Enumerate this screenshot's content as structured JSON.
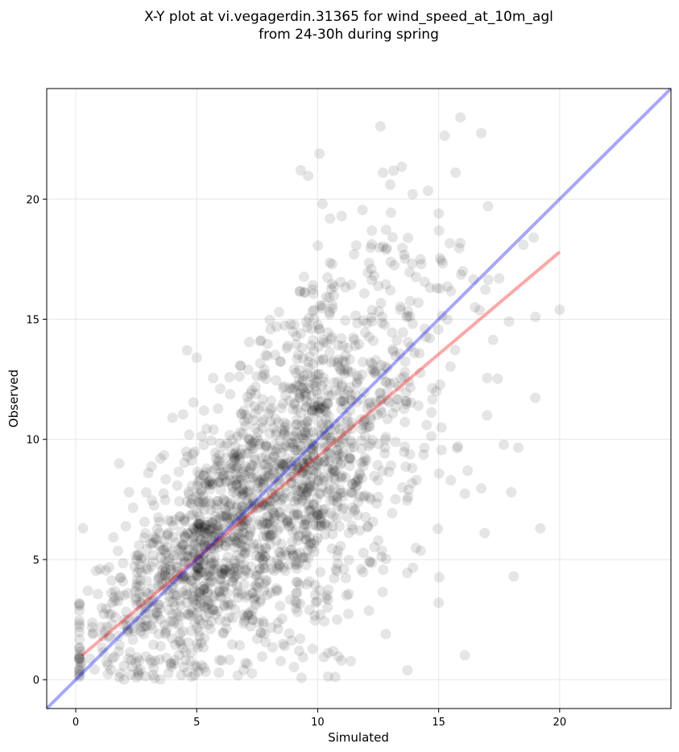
{
  "chart_data": {
    "type": "scatter",
    "title": "X-Y plot at vi.vegagerdin.31365 for wind_speed_at_10m_agl\nfrom 24-30h during spring",
    "xlabel": "Simulated",
    "ylabel": "Observed",
    "xlim": [
      -1.2,
      24.6
    ],
    "ylim": [
      -1.2,
      24.6
    ],
    "xticks": [
      0,
      5,
      10,
      15,
      20
    ],
    "yticks": [
      0,
      5,
      10,
      15,
      20
    ],
    "grid": true,
    "point_color": "#000000",
    "point_alpha": 0.1,
    "cluster_description": {
      "approx_point_count": 2000,
      "x_range": [
        0.1,
        20.0
      ],
      "y_range": [
        0.0,
        23.4
      ],
      "dense_core_center": [
        6.5,
        5.5
      ]
    },
    "sample_points": {
      "x": [
        0.3,
        0.5,
        0.7,
        1.0,
        1.2,
        1.5,
        1.8,
        2.0,
        2.2,
        2.5,
        2.7,
        3.0,
        3.2,
        3.5,
        3.8,
        4.0,
        4.3,
        4.5,
        4.8,
        5.0,
        5.2,
        5.5,
        5.8,
        6.0,
        6.3,
        6.5,
        6.8,
        7.0,
        7.3,
        7.5,
        7.8,
        8.0,
        8.3,
        8.5,
        8.8,
        9.0,
        9.3,
        9.5,
        9.8,
        10.0,
        10.3,
        10.5,
        10.8,
        11.0,
        11.3,
        11.5,
        11.8,
        12.0,
        12.3,
        12.5,
        12.8,
        13.0,
        13.5,
        14.0,
        14.5,
        15.0,
        15.5,
        16.0,
        16.5,
        17.0,
        17.5,
        18.0,
        18.5,
        19.0,
        19.2,
        20.0,
        9.3,
        10.2,
        12.7,
        13.0,
        15.7,
        15.9,
        4.6,
        5.3,
        1.8,
        3.2,
        15.0,
        18.1,
        16.9,
        15.8
      ],
      "y": [
        6.3,
        3.7,
        1.9,
        4.6,
        2.0,
        3.2,
        9.0,
        0.0,
        7.8,
        3.4,
        2.0,
        8.6,
        4.9,
        2.5,
        6.0,
        10.9,
        3.3,
        6.7,
        2.8,
        13.4,
        0.6,
        5.6,
        9.2,
        6.8,
        3.1,
        7.8,
        10.3,
        5.5,
        8.9,
        1.7,
        12.9,
        7.2,
        3.8,
        11.3,
        6.4,
        9.8,
        14.4,
        5.1,
        8.7,
        11.4,
        6.5,
        15.3,
        2.5,
        12.3,
        9.2,
        17.7,
        4.6,
        10.5,
        14.1,
        7.6,
        12.4,
        16.2,
        8.0,
        13.6,
        10.6,
        19.4,
        8.3,
        17.0,
        15.5,
        11.0,
        16.7,
        7.8,
        18.1,
        15.1,
        6.3,
        15.4,
        21.2,
        19.8,
        21.1,
        20.6,
        21.1,
        23.4,
        13.7,
        0.5,
        0.1,
        0.2,
        3.2,
        4.3,
        6.1,
        9.7
      ]
    },
    "reference_line": {
      "name": "1:1",
      "color": "#0000ff",
      "alpha": 0.35,
      "x": [
        -1.2,
        24.6
      ],
      "y": [
        -1.2,
        24.6
      ]
    },
    "fit_line": {
      "name": "fit",
      "color": "#ff0000",
      "alpha": 0.35,
      "x": [
        0.25,
        20.0
      ],
      "y": [
        1.0,
        17.8
      ]
    }
  }
}
